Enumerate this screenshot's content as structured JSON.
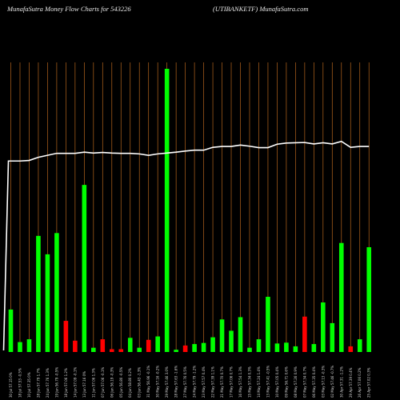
{
  "header": {
    "title_left": "MunafaSutra  Money Flow  Charts for 543226",
    "title_right": "(UTIBANKETF) MunafaSutra.com"
  },
  "colors": {
    "background": "#000000",
    "up": "#00ff00",
    "down": "#ff0000",
    "price_line": "#ffffff",
    "grid": "#b5651d"
  },
  "chart_data": {
    "type": "bar",
    "title": "MunafaSutra  Money Flow  Charts for 543226",
    "subtitle": "(UTIBANKETF) MunafaSutra.com",
    "grid": true,
    "ylim": [
      0,
      100
    ],
    "categories": [
      "30 Jul 57.15 0%",
      "18 Jul 57.53 -0.5%",
      "10 Jul 57.35 0%",
      "28 Jun 57.79 1.7%",
      "24 Jun 57.76 1.3%",
      "19 Jun 56.79 -0.5%",
      "18 Jun 57.06 1.2%",
      "14 Jun 57.09 -0.1%",
      "13 Jun 57.16 0%",
      "11 Jun 57.06 1.3%",
      "07 Jun 57.06 -0.1%",
      "06 Jun 56.19 -0.3%",
      "05 Jun 56.80 -0.5%",
      "04 Jun 58.80 0.2%",
      "03 Jun 56.43 -1.3%",
      "31 May 56.96 -0.1%",
      "30 May 57.16 -0.2%",
      "29 May 57.46 3.0%",
      "28 May 57.63 -1.6%",
      "27 May 57.76 0.5%",
      "24 May 57.79 -1.2%",
      "23 May 57.57 0.4%",
      "22 May 57.39 1.1%",
      "21 May 57.70 0.7%",
      "17 May 57.06 0.7%",
      "16 May 57.54 1.3%",
      "15 May 57.34 0.3%",
      "14 May 57.24 1.4%",
      "13 May 57.41 -0.5%",
      "10 May 57.05 0.4%",
      "09 May 56.71 0.6%",
      "08 May 57.26 0.9%",
      "07 May 57.34 0.7%",
      "06 May 57.35 0.4%",
      "03 May 57.13 -0.3%",
      "02 May 57.46 -0.7%",
      "30 Apr 57.31 -1.2%",
      "29 Apr 57.39 0.4%",
      "26 Apr 57.06 0.2%",
      "25 Apr 57.02 0.3%"
    ],
    "values": [
      15,
      3.5,
      4.5,
      41,
      34.5,
      42,
      11,
      4,
      59,
      1.5,
      4.5,
      1,
      1,
      5,
      1.5,
      4.3,
      5.5,
      100,
      0.8,
      2.3,
      2.8,
      3.2,
      5.2,
      11.5,
      7.5,
      12.3,
      1.5,
      4.5,
      19.5,
      3,
      3.3,
      2,
      12.5,
      2.8,
      17.5,
      10.2,
      38.5,
      2,
      4.5,
      37
    ],
    "directions": [
      "up",
      "up",
      "up",
      "up",
      "up",
      "up",
      "down",
      "down",
      "up",
      "up",
      "down",
      "down",
      "down",
      "up",
      "up",
      "down",
      "up",
      "up",
      "up",
      "down",
      "up",
      "up",
      "up",
      "up",
      "up",
      "up",
      "up",
      "up",
      "up",
      "up",
      "up",
      "up",
      "down",
      "up",
      "up",
      "up",
      "up",
      "down",
      "up",
      "up"
    ],
    "price_line": [
      66.5,
      66.5,
      66.7,
      67.8,
      68.5,
      69.2,
      69.2,
      69.2,
      69.6,
      69.3,
      69.5,
      69.3,
      69.2,
      69.2,
      69.0,
      68.5,
      69.0,
      69.3,
      69.6,
      70.0,
      70.3,
      70.3,
      71.3,
      71.6,
      71.6,
      72.1,
      71.7,
      71.2,
      71.2,
      72.4,
      72.8,
      72.9,
      73.0,
      72.5,
      72.9,
      72.5,
      73.4,
      71.3,
      71.6,
      71.6
    ]
  }
}
